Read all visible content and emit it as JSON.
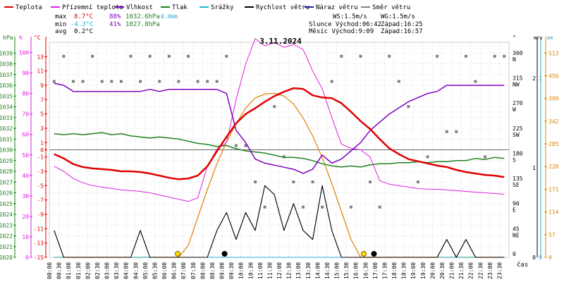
{
  "chart_data": {
    "type": "line",
    "title": "3.11.2024",
    "time_labels": [
      "00:00",
      "00:30",
      "01:00",
      "01:30",
      "02:00",
      "02:30",
      "03:00",
      "03:30",
      "04:00",
      "04:30",
      "05:00",
      "05:30",
      "06:00",
      "06:30",
      "07:00",
      "07:30",
      "08:00",
      "08:30",
      "09:00",
      "09:30",
      "10:00",
      "10:30",
      "11:00",
      "11:30",
      "12:00",
      "12:30",
      "13:00",
      "13:30",
      "14:00",
      "14:30",
      "15:00",
      "15:30",
      "16:00",
      "16:30",
      "17:00",
      "17:30",
      "18:00",
      "18:30",
      "19:00",
      "19:30",
      "20:00",
      "20:30",
      "21:00",
      "21:30",
      "22:00",
      "22:30",
      "23:00",
      "23:30"
    ],
    "xlabel": "čas",
    "legend": [
      {
        "label": "Teplota",
        "color": "#e00000"
      },
      {
        "label": "Přízemní teplota",
        "color": "#e020e0"
      },
      {
        "label": "Vlhkost",
        "color": "#8000c0"
      },
      {
        "label": "Tlak",
        "color": "#208020"
      },
      {
        "label": "Srážky",
        "color": "#20b0d0"
      },
      {
        "label": "Rychlost větru",
        "color": "#000000"
      },
      {
        "label": "Náraz větru",
        "color": "#2020a0"
      },
      {
        "label": "Směr větru",
        "color": "#808080"
      }
    ],
    "stats": {
      "max_label": "max",
      "max_temp": "8.7°C",
      "max_hum": "88%",
      "max_press": "1032.6hPa",
      "max_rain": "0.0mm",
      "min_label": "min",
      "min_temp": "-4.3°C",
      "min_hum": "41%",
      "min_press": "1027.8hPa",
      "avg_label": "avg",
      "avg_temp": "0.2°C",
      "ws": "WS:1.5m/s",
      "wg": "WG:1.5m/s",
      "sun_rise": "Slunce Východ:06:42",
      "sun_set": "Západ:16:25",
      "moon_rise": "Měsíc  Východ:9:09",
      "moon_set": "Západ:16:57"
    },
    "axes": {
      "hpa_label": "hPa",
      "hpa_ticks": [
        1020,
        1021,
        1022,
        1023,
        1024,
        1025,
        1026,
        1027,
        1028,
        1029,
        1030,
        1031,
        1032,
        1033,
        1034,
        1035,
        1036,
        1037,
        1038,
        1039
      ],
      "pct_label": "%",
      "pct_ticks": [
        0,
        10,
        20,
        30,
        40,
        50,
        60,
        70,
        80,
        90,
        100
      ],
      "c_label": "°C",
      "c_ticks": [
        -15,
        -13,
        -11,
        -9,
        -7,
        -5,
        -3,
        -1,
        0,
        1,
        3,
        5,
        7,
        9,
        11,
        13
      ],
      "dir_label": "°",
      "dir_ticks": [
        {
          "v": "0",
          "n": ""
        },
        {
          "v": "45",
          "n": "NE"
        },
        {
          "v": "90",
          "n": "E"
        },
        {
          "v": "135",
          "n": "SE"
        },
        {
          "v": "180",
          "n": "S"
        },
        {
          "v": "225",
          "n": "SW"
        },
        {
          "v": "270",
          "n": "W"
        },
        {
          "v": "315",
          "n": "NW"
        },
        {
          "v": "360",
          "n": "N"
        }
      ],
      "ms_label": "m/s",
      "ms_ticks": [
        0,
        1,
        2
      ],
      "mm_label": "mm",
      "mm_ticks": [
        0,
        1
      ],
      "sun_ticks": [
        0,
        57,
        114,
        171,
        228,
        285,
        342,
        399,
        456,
        513
      ]
    },
    "series": [
      {
        "name": "Teplota",
        "unit": "°C",
        "values": [
          -0.6,
          -1.2,
          -2.0,
          -2.4,
          -2.6,
          -2.7,
          -2.8,
          -3.0,
          -3.0,
          -3.1,
          -3.3,
          -3.6,
          -3.9,
          -4.1,
          -4.0,
          -3.6,
          -2.3,
          -0.2,
          1.8,
          3.7,
          5.0,
          5.8,
          6.7,
          7.5,
          8.1,
          8.6,
          8.5,
          7.6,
          7.3,
          7.2,
          6.5,
          5.3,
          4.0,
          2.9,
          1.5,
          0.2,
          -0.6,
          -1.3,
          -1.6,
          -1.9,
          -2.2,
          -2.4,
          -2.8,
          -3.1,
          -3.3,
          -3.5,
          -3.6,
          -3.8
        ]
      },
      {
        "name": "Přízemní teplota",
        "unit": "°C",
        "values": [
          -2.3,
          -3.0,
          -4.0,
          -4.6,
          -5.0,
          -5.2,
          -5.4,
          -5.6,
          -5.7,
          -5.8,
          -6.0,
          -6.3,
          -6.6,
          -6.9,
          -7.2,
          -6.7,
          -2.3,
          0.1,
          1.0,
          7.0,
          12.0,
          15.5,
          14.5,
          15.0,
          14.3,
          14.7,
          14.0,
          11.0,
          8.5,
          4.5,
          0.8,
          0.2,
          0.0,
          -1.0,
          -4.3,
          -4.8,
          -5.0,
          -5.2,
          -5.4,
          -5.5,
          -5.5,
          -5.6,
          -5.7,
          -5.8,
          -5.9,
          -6.0,
          -6.1,
          -6.2
        ]
      },
      {
        "name": "Vlhkost",
        "unit": "%",
        "values": [
          85,
          84,
          81,
          81,
          81,
          81,
          81,
          81,
          81,
          81,
          82,
          81,
          82,
          82,
          82,
          82,
          82,
          82,
          80,
          62,
          56,
          48,
          46,
          45,
          44,
          43,
          41,
          43,
          50,
          46,
          48,
          52,
          56,
          62,
          66,
          70,
          73,
          76,
          78,
          80,
          81,
          84,
          84,
          84,
          84,
          84,
          84,
          84
        ]
      },
      {
        "name": "Tlak",
        "unit": "hPa",
        "values": [
          1031.5,
          1031.4,
          1031.5,
          1031.4,
          1031.5,
          1031.6,
          1031.4,
          1031.5,
          1031.3,
          1031.2,
          1031.1,
          1031.2,
          1031.1,
          1031.0,
          1030.8,
          1030.6,
          1030.5,
          1030.3,
          1030.4,
          1030.1,
          1029.9,
          1029.8,
          1029.7,
          1029.5,
          1029.3,
          1029.3,
          1029.2,
          1029.0,
          1028.7,
          1028.5,
          1028.4,
          1028.5,
          1028.4,
          1028.6,
          1028.7,
          1028.7,
          1028.8,
          1028.8,
          1028.9,
          1028.8,
          1028.9,
          1028.9,
          1029.0,
          1029.0,
          1029.2,
          1029.1,
          1029.3,
          1029.2
        ]
      },
      {
        "name": "Rychlost větru",
        "unit": "m/s",
        "values": [
          0.3,
          0,
          0,
          0,
          0,
          0,
          0,
          0,
          0,
          0.3,
          0,
          0,
          0,
          0,
          0,
          0,
          0,
          0.3,
          0.5,
          0.2,
          0.5,
          0.3,
          0.8,
          0.7,
          0.3,
          0.6,
          0.3,
          0.2,
          0.8,
          0.3,
          0,
          0,
          0,
          0,
          0,
          0,
          0,
          0,
          0,
          0,
          0,
          0.2,
          0,
          0.2,
          0,
          0,
          0,
          0
        ]
      },
      {
        "name": "Náraz větru",
        "unit": "m/s",
        "values": [
          0.3,
          0,
          0,
          0,
          0,
          0,
          0,
          0,
          0,
          0.3,
          0,
          0,
          0,
          0,
          0,
          0,
          0,
          0.3,
          0.5,
          0.2,
          0.5,
          0.3,
          0.8,
          0.7,
          0.3,
          0.6,
          0.3,
          0.2,
          0.8,
          0.3,
          0,
          0,
          0,
          0,
          0,
          0,
          0,
          0,
          0,
          0,
          0,
          0.2,
          0,
          0.2,
          0,
          0,
          0,
          0
        ]
      },
      {
        "name": "Srážky",
        "unit": "mm",
        "values": [
          0,
          0,
          0,
          0,
          0,
          0,
          0,
          0,
          0,
          0,
          0,
          0,
          0,
          0,
          0,
          0,
          0,
          0,
          0,
          0,
          0,
          0,
          0,
          0,
          0,
          0,
          0,
          0,
          0,
          0,
          0,
          0,
          0,
          0,
          0,
          0,
          0,
          0,
          0,
          0,
          0,
          0,
          0,
          0,
          0,
          0,
          0,
          0
        ]
      }
    ],
    "wind_direction": [
      315,
      360,
      315,
      315,
      360,
      315,
      315,
      315,
      360,
      315,
      360,
      315,
      360,
      315,
      360,
      315,
      315,
      315,
      360,
      200,
      200,
      135,
      90,
      270,
      180,
      135,
      90,
      135,
      90,
      315,
      360,
      90,
      360,
      135,
      90,
      360,
      315,
      270,
      135,
      180,
      360,
      225,
      225,
      360,
      315,
      180,
      360,
      360
    ],
    "solar_radiation": [
      0,
      0,
      0,
      0,
      0,
      0,
      0,
      0,
      0,
      0,
      0,
      0,
      0,
      0,
      30,
      100,
      170,
      235,
      290,
      335,
      375,
      400,
      410,
      412,
      405,
      385,
      350,
      305,
      250,
      185,
      115,
      45,
      0,
      0,
      0,
      0,
      0,
      0,
      0,
      0,
      0,
      0,
      0,
      0,
      0,
      0,
      0,
      0
    ],
    "markers": {
      "sunrise_time": "06:42",
      "sunset_time": "16:25",
      "moonrise_time": "9:09",
      "moonset_time": "16:57"
    }
  }
}
